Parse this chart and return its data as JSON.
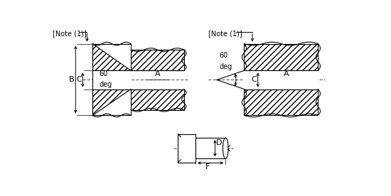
{
  "bg_color": "#ffffff",
  "line_color": "#000000",
  "note_text": "[Note (1)]",
  "label_A": "A",
  "label_B": "B",
  "label_C": "C",
  "label_D": "D",
  "label_F": "F",
  "label_60deg_a": "60",
  "label_60deg_b": "deg",
  "fig_width": 5.5,
  "fig_height": 2.76,
  "hatch": "////"
}
